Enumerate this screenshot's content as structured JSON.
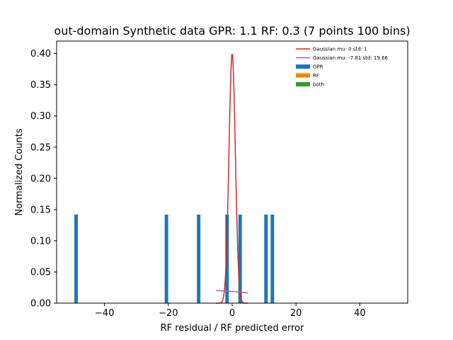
{
  "chart_data": {
    "type": "bar",
    "title": "out-domain Synthetic data GPR: 1.1 RF: 0.3 (7 points 100 bins)",
    "xlabel": "RF residual / RF predicted error",
    "ylabel": "Normalized Counts",
    "xlim": [
      -55,
      55
    ],
    "ylim": [
      0,
      0.42
    ],
    "xticks": [
      -40,
      -20,
      0,
      20,
      40
    ],
    "xtick_labels": [
      "−40",
      "−20",
      "0",
      "20",
      "40"
    ],
    "yticks": [
      0.0,
      0.05,
      0.1,
      0.15,
      0.2,
      0.25,
      0.3,
      0.35,
      0.4
    ],
    "ytick_labels": [
      "0.00",
      "0.05",
      "0.10",
      "0.15",
      "0.20",
      "0.25",
      "0.30",
      "0.35",
      "0.40"
    ],
    "legend_position": "top-right",
    "bar_width": 1.1,
    "series": [
      {
        "name": "GPR",
        "color": "#1f77b4",
        "kind": "hist",
        "bars": [
          {
            "x": -48.9,
            "y": 0.142
          },
          {
            "x": -20.6,
            "y": 0.142
          },
          {
            "x": -10.5,
            "y": 0.142
          },
          {
            "x": -1.6,
            "y": 0.142
          },
          {
            "x": 2.5,
            "y": 0.142
          },
          {
            "x": 10.6,
            "y": 0.142
          },
          {
            "x": 12.6,
            "y": 0.142
          }
        ]
      },
      {
        "name": "RF",
        "color": "#ff7f0e",
        "kind": "hist",
        "bars": []
      },
      {
        "name": "both",
        "color": "#2ca02c",
        "kind": "hist",
        "bars": []
      },
      {
        "name": "Gaussian mu: 0 std: 1",
        "color": "#d62728",
        "kind": "line",
        "mu": 0,
        "std": 1,
        "x_range": [
          -5,
          5
        ]
      },
      {
        "name": "Gaussian mu: -7.81 std: 19.66",
        "color": "#9467bd",
        "kind": "line",
        "mu": -7.81,
        "std": 19.66,
        "x_range": [
          -5,
          5
        ]
      }
    ]
  }
}
